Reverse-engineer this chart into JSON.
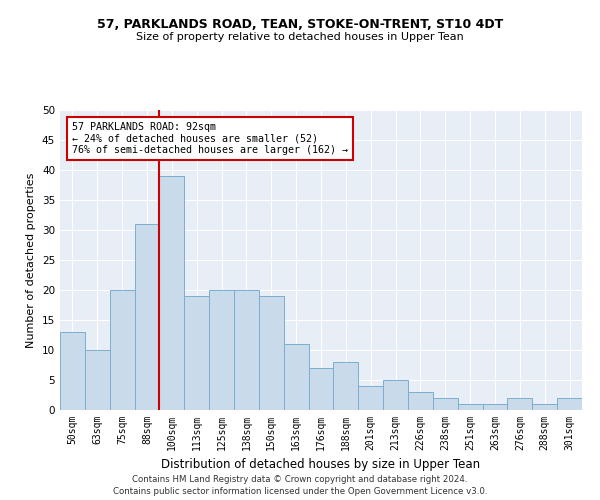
{
  "title1": "57, PARKLANDS ROAD, TEAN, STOKE-ON-TRENT, ST10 4DT",
  "title2": "Size of property relative to detached houses in Upper Tean",
  "xlabel": "Distribution of detached houses by size in Upper Tean",
  "ylabel": "Number of detached properties",
  "bar_labels": [
    "50sqm",
    "63sqm",
    "75sqm",
    "88sqm",
    "100sqm",
    "113sqm",
    "125sqm",
    "138sqm",
    "150sqm",
    "163sqm",
    "176sqm",
    "188sqm",
    "201sqm",
    "213sqm",
    "226sqm",
    "238sqm",
    "251sqm",
    "263sqm",
    "276sqm",
    "288sqm",
    "301sqm"
  ],
  "bar_values": [
    13,
    10,
    20,
    31,
    39,
    19,
    20,
    20,
    19,
    11,
    7,
    8,
    4,
    5,
    3,
    2,
    1,
    1,
    2,
    1,
    2
  ],
  "bar_color": "#c9daea",
  "bar_edge_color": "#7aaed0",
  "vline_color": "#cc0000",
  "annotation_line1": "57 PARKLANDS ROAD: 92sqm",
  "annotation_line2": "← 24% of detached houses are smaller (52)",
  "annotation_line3": "76% of semi-detached houses are larger (162) →",
  "annotation_box_color": "#ffffff",
  "annotation_box_edge": "#cc0000",
  "ylim": [
    0,
    50
  ],
  "yticks": [
    0,
    5,
    10,
    15,
    20,
    25,
    30,
    35,
    40,
    45,
    50
  ],
  "bg_color": "#e8eef6",
  "footer1": "Contains HM Land Registry data © Crown copyright and database right 2024.",
  "footer2": "Contains public sector information licensed under the Open Government Licence v3.0."
}
